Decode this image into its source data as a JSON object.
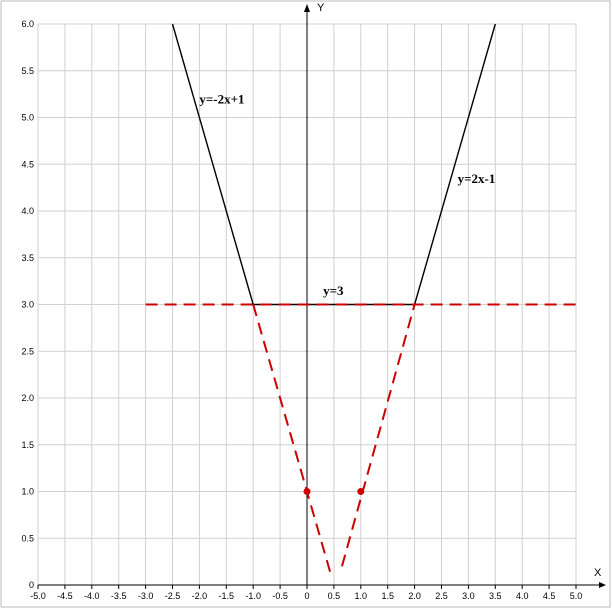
{
  "chart_data": {
    "type": "line",
    "xlabel": "X",
    "ylabel": "Y",
    "xlim": [
      -5.0,
      5.0
    ],
    "ylim": [
      0,
      6.0
    ],
    "x_tick_labels": [
      "-5.0",
      "-4.5",
      "-4.0",
      "-3.5",
      "-3.0",
      "-2.5",
      "-2.0",
      "-1.5",
      "-1.0",
      "-0.5",
      "0",
      "0.5",
      "1.0",
      "1.5",
      "2.0",
      "2.5",
      "3.0",
      "3.5",
      "4.0",
      "4.5",
      "5.0"
    ],
    "y_tick_labels": [
      "0",
      "0.5",
      "1.0",
      "1.5",
      "2.0",
      "2.5",
      "3.0",
      "3.5",
      "4.0",
      "4.5",
      "5.0",
      "5.5",
      "6.0"
    ],
    "grid": true,
    "series": [
      {
        "name": "y=-2x+1",
        "style": "solid",
        "color": "#000000",
        "points": [
          [
            -2.5,
            6.0
          ],
          [
            -1.0,
            3.0
          ]
        ]
      },
      {
        "name": "y=3",
        "style": "solid",
        "color": "#000000",
        "points": [
          [
            -1.0,
            3.0
          ],
          [
            2.0,
            3.0
          ]
        ]
      },
      {
        "name": "y=2x-1",
        "style": "solid",
        "color": "#000000",
        "points": [
          [
            2.0,
            3.0
          ],
          [
            3.5,
            6.0
          ]
        ]
      },
      {
        "name": "",
        "style": "dashed",
        "color": "#cc0000",
        "points": [
          [
            -3.0,
            3.0
          ],
          [
            5.0,
            3.0
          ]
        ]
      },
      {
        "name": "",
        "style": "dashed",
        "color": "#cc0000",
        "points": [
          [
            -1.0,
            3.0
          ],
          [
            0.45,
            0.1
          ]
        ]
      },
      {
        "name": "",
        "style": "dashed",
        "color": "#cc0000",
        "points": [
          [
            0.65,
            0.2
          ],
          [
            2.0,
            3.0
          ]
        ]
      }
    ],
    "points": [
      {
        "x": 0,
        "y": 1.0,
        "color": "#cc0000"
      },
      {
        "x": 1.0,
        "y": 1.0,
        "color": "#cc0000"
      }
    ],
    "annotations": [
      {
        "text": "y=-2x+1",
        "x": -2.0,
        "y": 5.15
      },
      {
        "text": "y=3",
        "x": 0.3,
        "y": 3.1
      },
      {
        "text": "y=2x-1",
        "x": 2.8,
        "y": 4.3
      }
    ]
  }
}
